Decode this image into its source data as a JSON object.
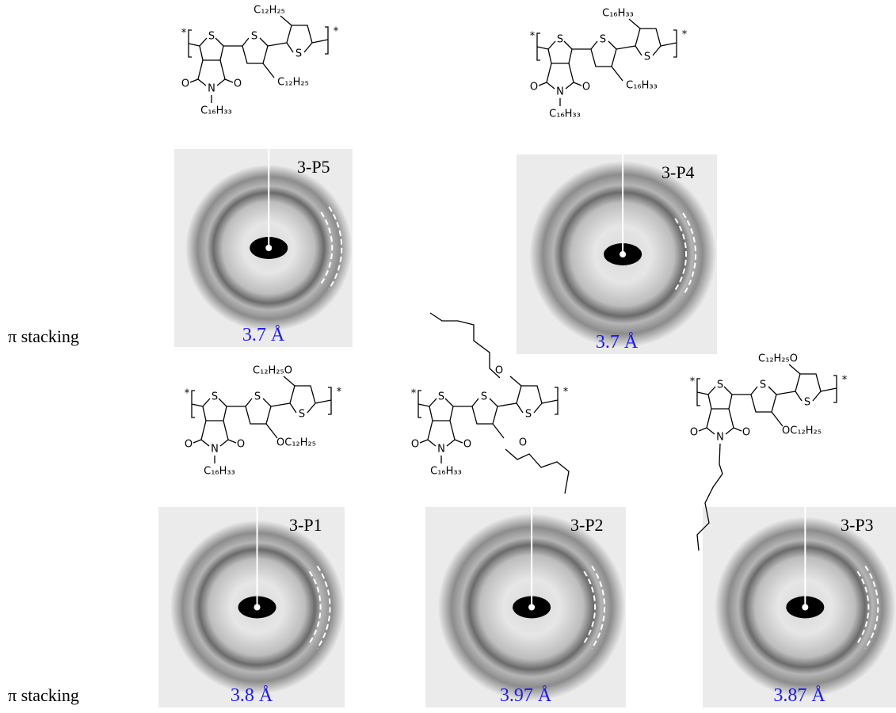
{
  "rows": [
    {
      "label": "π stacking",
      "panels": [
        {
          "name": "3-P5",
          "spacing": "3.7 Å",
          "structure": {
            "atoms": [
              "*",
              "S",
              "O",
              "N",
              "O",
              "S",
              "S",
              "*"
            ],
            "top": "C₁₂H₂₅",
            "side": "C₁₂H₂₅",
            "n_chain": "C₁₆H₃₃"
          }
        },
        {
          "name": "3-P4",
          "spacing": "3.7 Å",
          "structure": {
            "atoms": [
              "*",
              "S",
              "O",
              "N",
              "O",
              "S",
              "S",
              "*"
            ],
            "top": "C₁₆H₃₃",
            "side": "C₁₆H₃₃",
            "n_chain": "C₁₆H₃₃"
          }
        }
      ]
    },
    {
      "label": "π stacking",
      "panels": [
        {
          "name": "3-P1",
          "spacing": "3.8 Å",
          "structure": {
            "atoms": [
              "*",
              "S",
              "O",
              "N",
              "O",
              "S",
              "S",
              "*"
            ],
            "top": "C₁₂H₂₅O",
            "side": "OC₁₂H₂₅",
            "n_chain": "C₁₆H₃₃"
          }
        },
        {
          "name": "3-P2",
          "spacing": "3.97 Å",
          "structure": {
            "atoms": [
              "*",
              "S",
              "O",
              "N",
              "O",
              "S",
              "S",
              "*"
            ],
            "top": "O",
            "side": "O",
            "n_chain": "C₁₆H₃₃"
          }
        },
        {
          "name": "3-P3",
          "spacing": "3.87 Å",
          "structure": {
            "atoms": [
              "*",
              "S",
              "O",
              "N",
              "O",
              "S",
              "S",
              "*"
            ],
            "top": "C₁₂H₂₅O",
            "side": "OC₁₂H₂₅"
          }
        }
      ]
    }
  ]
}
